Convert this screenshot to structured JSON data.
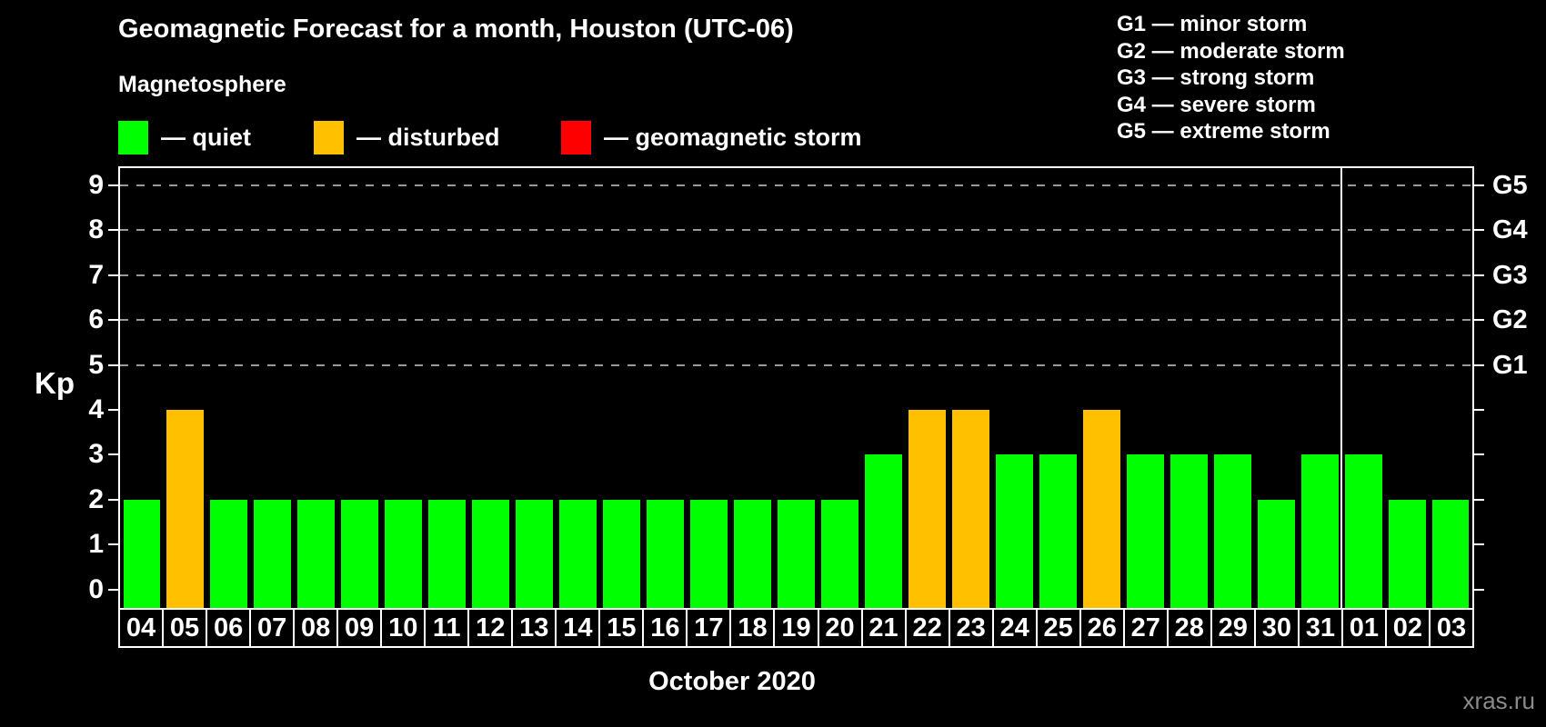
{
  "title": "Geomagnetic Forecast for a month, Houston (UTC-06)",
  "subtitle": "Magnetosphere",
  "legend": [
    {
      "label": "— quiet",
      "color": "#00ff00"
    },
    {
      "label": "— disturbed",
      "color": "#ffc000"
    },
    {
      "label": "— geomagnetic storm",
      "color": "#ff0000"
    }
  ],
  "storm_scale": [
    "G1 — minor storm",
    "G2 — moderate storm",
    "G3 — strong storm",
    "G4 — severe storm",
    "G5 — extreme storm"
  ],
  "watermark": "xras.ru",
  "colors": {
    "background": "#000000",
    "axis": "#ffffff",
    "grid": "#999999",
    "text": "#ffffff",
    "watermark": "#8b8b8b"
  },
  "chart_data": {
    "type": "bar",
    "title": "Geomagnetic Forecast for a month, Houston (UTC-06)",
    "xlabel": "October 2020",
    "ylabel": "Kp",
    "ylim": [
      0,
      9
    ],
    "y_ticks": [
      0,
      1,
      2,
      3,
      4,
      5,
      6,
      7,
      8,
      9
    ],
    "categories": [
      "04",
      "05",
      "06",
      "07",
      "08",
      "09",
      "10",
      "11",
      "12",
      "13",
      "14",
      "15",
      "16",
      "17",
      "18",
      "19",
      "20",
      "21",
      "22",
      "23",
      "24",
      "25",
      "26",
      "27",
      "28",
      "29",
      "30",
      "31",
      "01",
      "02",
      "03"
    ],
    "values": [
      2,
      4,
      2,
      2,
      2,
      2,
      2,
      2,
      2,
      2,
      2,
      2,
      2,
      2,
      2,
      2,
      2,
      3,
      4,
      4,
      3,
      3,
      4,
      3,
      3,
      3,
      2,
      3,
      3,
      2,
      2
    ],
    "statuses": [
      "quiet",
      "disturbed",
      "quiet",
      "quiet",
      "quiet",
      "quiet",
      "quiet",
      "quiet",
      "quiet",
      "quiet",
      "quiet",
      "quiet",
      "quiet",
      "quiet",
      "quiet",
      "quiet",
      "quiet",
      "quiet",
      "disturbed",
      "disturbed",
      "quiet",
      "quiet",
      "disturbed",
      "quiet",
      "quiet",
      "quiet",
      "quiet",
      "quiet",
      "quiet",
      "quiet",
      "quiet"
    ],
    "status_colors": {
      "quiet": "#00ff00",
      "disturbed": "#ffc000",
      "storm": "#ff0000"
    },
    "right_axis": [
      {
        "kp": 5,
        "label": "G1"
      },
      {
        "kp": 6,
        "label": "G2"
      },
      {
        "kp": 7,
        "label": "G3"
      },
      {
        "kp": 8,
        "label": "G4"
      },
      {
        "kp": 9,
        "label": "G5"
      }
    ],
    "gridlines_kp": [
      5,
      6,
      7,
      8,
      9
    ],
    "separator_after_category": "31",
    "grid": "dashed horizontal lines at storm levels only",
    "legend_position": "top-left"
  }
}
